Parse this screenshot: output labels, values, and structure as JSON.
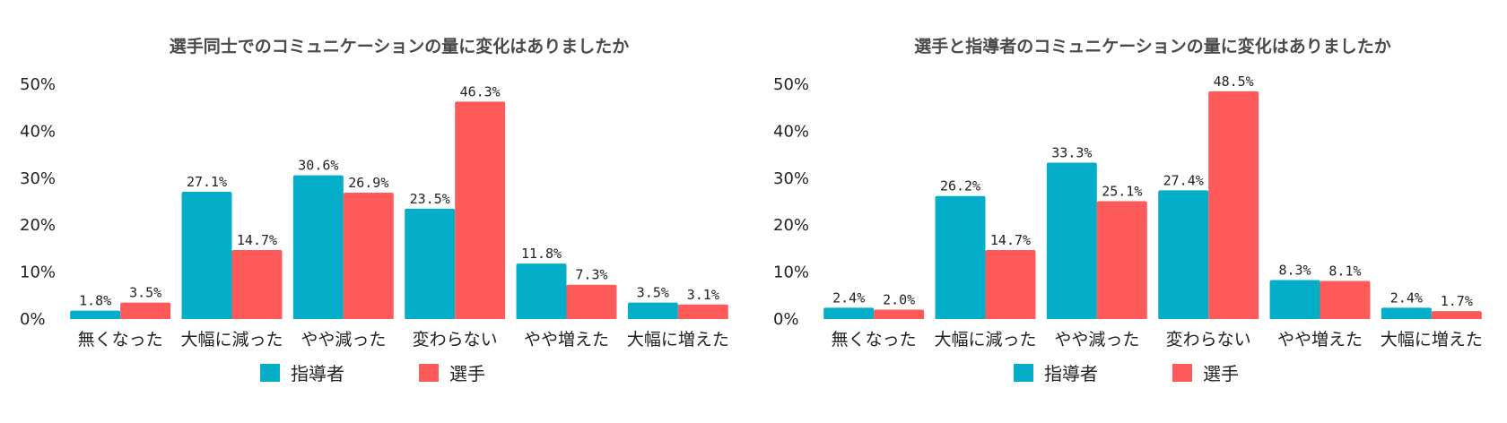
{
  "colors": {
    "coach": "#05aec8",
    "player": "#ff5a5a"
  },
  "chart_data": [
    {
      "type": "bar",
      "title": "選手同士でのコミュニケーションの量に変化はありましたか",
      "categories": [
        "無くなった",
        "大幅に減った",
        "やや減った",
        "変わらない",
        "やや増えた",
        "大幅に増えた"
      ],
      "series": [
        {
          "name": "指導者",
          "values": [
            1.8,
            27.1,
            30.6,
            23.5,
            11.8,
            3.5
          ],
          "labels": [
            "1.8%",
            "27.1%",
            "30.6%",
            "23.5%",
            "11.8%",
            "3.5%"
          ]
        },
        {
          "name": "選手",
          "values": [
            3.5,
            14.7,
            26.9,
            46.3,
            7.3,
            3.1
          ],
          "labels": [
            "3.5%",
            "14.7%",
            "26.9%",
            "46.3%",
            "7.3%",
            "3.1%"
          ]
        }
      ],
      "yticks": [
        "0%",
        "10%",
        "20%",
        "30%",
        "40%",
        "50%"
      ],
      "ylim": [
        0,
        50
      ],
      "grid": false,
      "legend": "bottom"
    },
    {
      "type": "bar",
      "title": "選手と指導者のコミュニケーションの量に変化はありましたか",
      "categories": [
        "無くなった",
        "大幅に減った",
        "やや減った",
        "変わらない",
        "やや増えた",
        "大幅に増えた"
      ],
      "series": [
        {
          "name": "指導者",
          "values": [
            2.4,
            26.2,
            33.3,
            27.4,
            8.3,
            2.4
          ],
          "labels": [
            "2.4%",
            "26.2%",
            "33.3%",
            "27.4%",
            "8.3%",
            "2.4%"
          ]
        },
        {
          "name": "選手",
          "values": [
            2.0,
            14.7,
            25.1,
            48.5,
            8.1,
            1.7
          ],
          "labels": [
            "2.0%",
            "14.7%",
            "25.1%",
            "48.5%",
            "8.1%",
            "1.7%"
          ]
        }
      ],
      "yticks": [
        "0%",
        "10%",
        "20%",
        "30%",
        "40%",
        "50%"
      ],
      "ylim": [
        0,
        50
      ],
      "grid": false,
      "legend": "bottom"
    }
  ]
}
